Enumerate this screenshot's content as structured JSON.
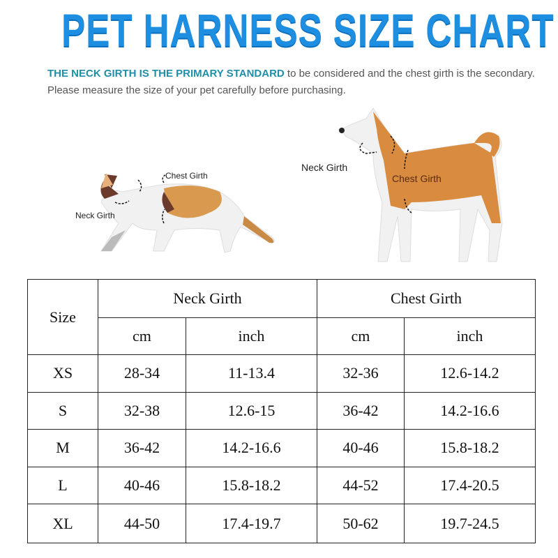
{
  "title": "PET HARNESS SIZE CHART",
  "intro": {
    "highlight": "THE NECK GIRTH IS THE PRIMARY STANDARD",
    "rest": " to be considered and the chest girth is the secondary. Please measure the size of your pet carefully before purchasing."
  },
  "cat": {
    "chest_label": "Chest Girth",
    "neck_label": "Neck  Girth"
  },
  "dog": {
    "chest_label": "Chest Girth",
    "neck_label": "Neck  Girth"
  },
  "colors": {
    "title": "#1e8fe0",
    "highlight": "#1f8ea8",
    "dog_orange": "#d98c3f"
  },
  "table": {
    "size_header": "Size",
    "groups": [
      "Neck Girth",
      "Chest Girth"
    ],
    "units": [
      "cm",
      "inch",
      "cm",
      "inch"
    ],
    "rows": [
      [
        "XS",
        "28-34",
        "11-13.4",
        "32-36",
        "12.6-14.2"
      ],
      [
        "S",
        "32-38",
        "12.6-15",
        "36-42",
        "14.2-16.6"
      ],
      [
        "M",
        "36-42",
        "14.2-16.6",
        "40-46",
        "15.8-18.2"
      ],
      [
        "L",
        "40-46",
        "15.8-18.2",
        "44-52",
        "17.4-20.5"
      ],
      [
        "XL",
        "44-50",
        "17.4-19.7",
        "50-62",
        "19.7-24.5"
      ]
    ]
  }
}
